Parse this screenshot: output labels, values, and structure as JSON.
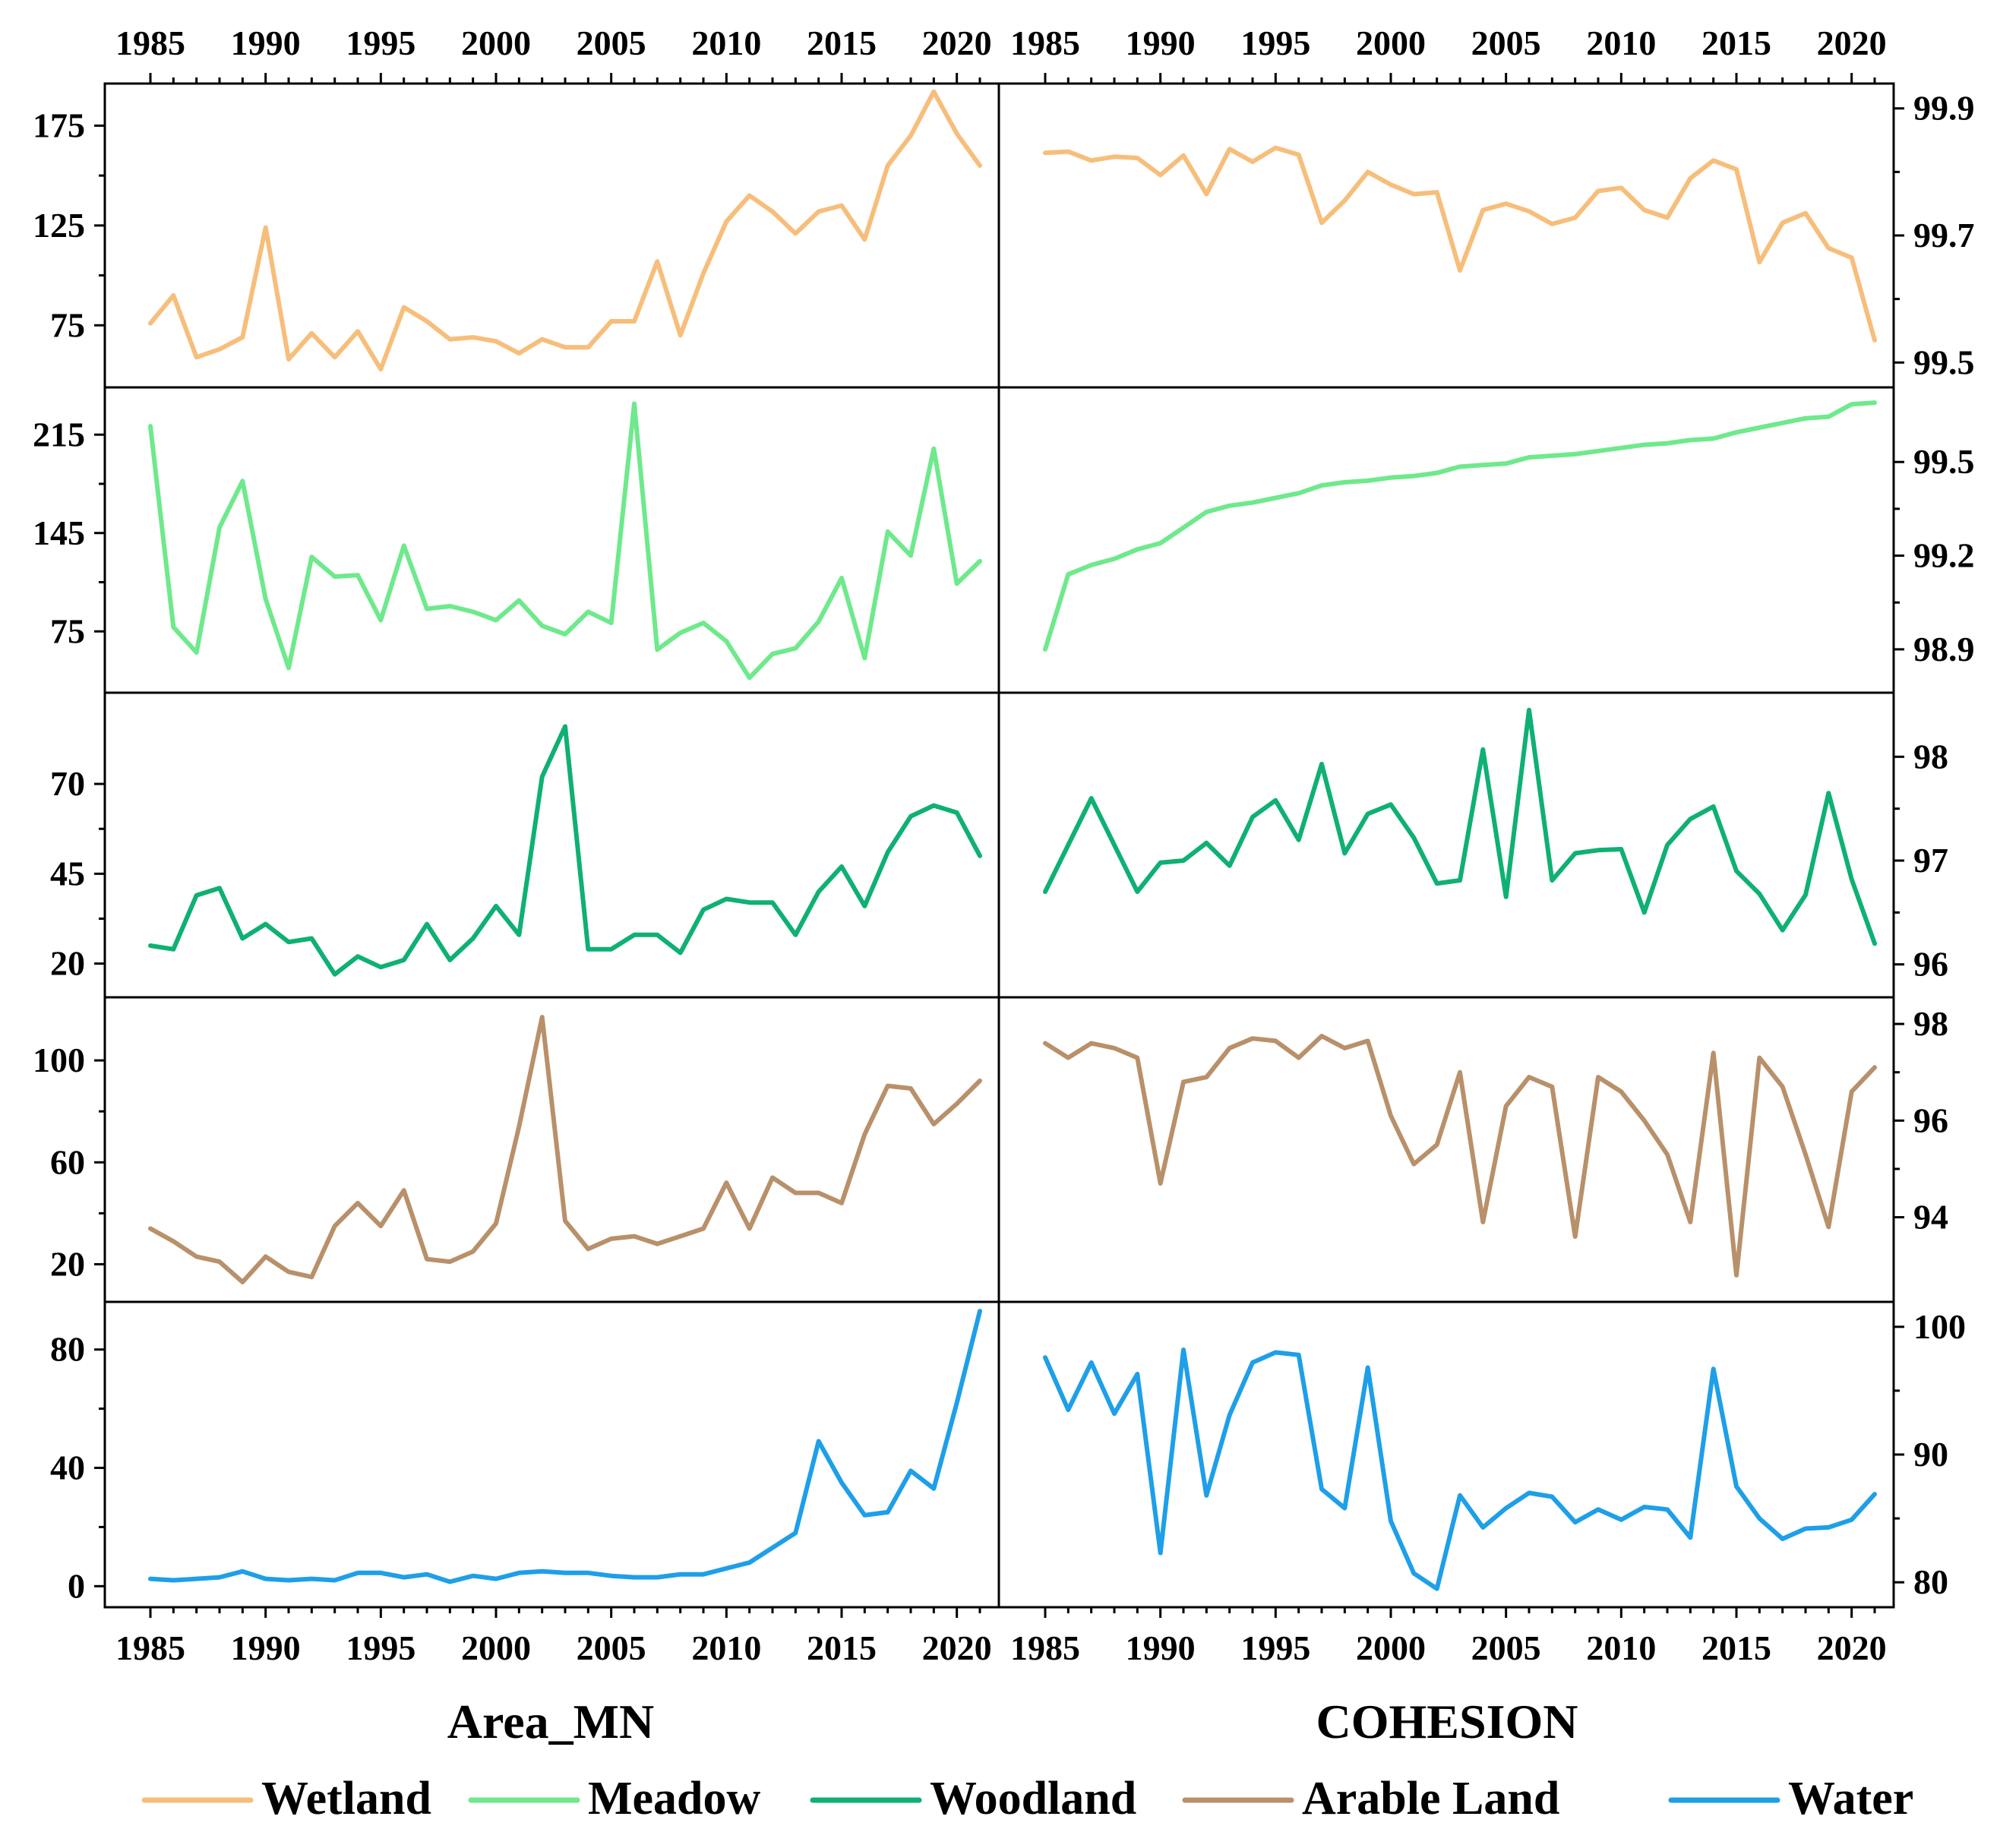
{
  "chart_data": {
    "type": "line",
    "years": [
      1985,
      1986,
      1987,
      1988,
      1989,
      1990,
      1991,
      1992,
      1993,
      1994,
      1995,
      1996,
      1997,
      1998,
      1999,
      2000,
      2001,
      2002,
      2003,
      2004,
      2005,
      2006,
      2007,
      2008,
      2009,
      2010,
      2011,
      2012,
      2013,
      2014,
      2015,
      2016,
      2017,
      2018,
      2019,
      2020,
      2021
    ],
    "x_ticks": [
      "1985",
      "1990",
      "1995",
      "2000",
      "2005",
      "2010",
      "2015",
      "2020"
    ],
    "columns": [
      {
        "title": "Area_MN",
        "metric": "Area_MN"
      },
      {
        "title": "COHESION",
        "metric": "COHESION"
      }
    ],
    "legend": [
      {
        "name": "Wetland",
        "color": "#F7BE7B"
      },
      {
        "name": "Meadow",
        "color": "#6EE98C"
      },
      {
        "name": "Woodland",
        "color": "#0FB074"
      },
      {
        "name": "Arable Land",
        "color": "#B8906A"
      },
      {
        "name": "Water",
        "color": "#1E9FE8"
      }
    ],
    "rows": [
      {
        "series": "Wetland",
        "color": "#F7BE7B",
        "area_mn": {
          "ylim": [
            50,
            190
          ],
          "ticks": [
            "75",
            "125",
            "175"
          ],
          "values": [
            76,
            90,
            59,
            63,
            69,
            124,
            58,
            71,
            59,
            72,
            53,
            84,
            77,
            68,
            69,
            67,
            61,
            68,
            64,
            64,
            77,
            77,
            107,
            70,
            101,
            127,
            140,
            132,
            121,
            132,
            135,
            118,
            155,
            170,
            192,
            171,
            155
          ]
        },
        "cohesion": {
          "ylim": [
            99.48,
            99.92
          ],
          "ticks": [
            "99.5",
            "99.7",
            "99.9"
          ],
          "values": [
            99.83,
            99.832,
            99.818,
            99.824,
            99.822,
            99.795,
            99.826,
            99.765,
            99.836,
            99.816,
            99.838,
            99.827,
            99.72,
            99.755,
            99.8,
            99.78,
            99.765,
            99.768,
            99.645,
            99.74,
            99.75,
            99.738,
            99.718,
            99.728,
            99.77,
            99.775,
            99.74,
            99.728,
            99.79,
            99.818,
            99.804,
            99.658,
            99.72,
            99.735,
            99.68,
            99.665,
            99.535
          ]
        }
      },
      {
        "series": "Meadow",
        "color": "#6EE98C",
        "area_mn": {
          "ylim": [
            40,
            240
          ],
          "ticks": [
            "75",
            "145",
            "215"
          ],
          "values": [
            221,
            78,
            60,
            149,
            182,
            98,
            49,
            128,
            114,
            115,
            83,
            136,
            91,
            93,
            89,
            83,
            97,
            79,
            73,
            89,
            81,
            237,
            62,
            74,
            81,
            68,
            42,
            59,
            63,
            82,
            113,
            56,
            146,
            129,
            205,
            109,
            125
          ]
        },
        "cohesion": {
          "ylim": [
            98.8,
            99.7
          ],
          "ticks": [
            "98.9",
            "99.2",
            "99.5"
          ],
          "values": [
            98.9,
            99.14,
            99.17,
            99.19,
            99.22,
            99.24,
            99.29,
            99.34,
            99.36,
            99.37,
            99.385,
            99.4,
            99.425,
            99.435,
            99.44,
            99.45,
            99.455,
            99.465,
            99.485,
            99.49,
            99.495,
            99.515,
            99.52,
            99.525,
            99.535,
            99.545,
            99.555,
            99.56,
            99.57,
            99.575,
            99.595,
            99.61,
            99.625,
            99.64,
            99.645,
            99.685,
            99.69
          ]
        }
      },
      {
        "series": "Woodland",
        "color": "#0FB074",
        "area_mn": {
          "ylim": [
            14,
            92
          ],
          "ticks": [
            "20",
            "45",
            "70"
          ],
          "values": [
            25,
            24,
            39,
            41,
            27,
            31,
            26,
            27,
            17,
            22,
            19,
            21,
            31,
            21,
            27,
            36,
            28,
            72,
            86,
            24,
            24,
            28,
            28,
            23,
            35,
            38,
            37,
            37,
            28,
            40,
            47,
            36,
            51,
            61,
            64,
            62,
            50
          ]
        },
        "cohesion": {
          "ylim": [
            95.8,
            98.5
          ],
          "ticks": [
            "96",
            "97",
            "98"
          ],
          "values": [
            96.7,
            97.15,
            97.6,
            97.15,
            96.7,
            96.98,
            97.0,
            97.17,
            96.95,
            97.42,
            97.58,
            97.2,
            97.93,
            97.07,
            97.45,
            97.54,
            97.22,
            96.78,
            96.81,
            98.07,
            96.65,
            98.45,
            96.81,
            97.07,
            97.1,
            97.11,
            96.5,
            97.15,
            97.4,
            97.52,
            96.9,
            96.68,
            96.33,
            96.67,
            97.65,
            96.82,
            96.2
          ]
        }
      },
      {
        "series": "Arable Land",
        "color": "#B8906A",
        "area_mn": {
          "ylim": [
            10,
            120
          ],
          "ticks": [
            "20",
            "60",
            "100"
          ],
          "values": [
            34,
            29,
            23,
            21,
            13,
            23,
            17,
            15,
            35,
            44,
            35,
            49,
            22,
            21,
            25,
            36,
            74,
            117,
            37,
            26,
            30,
            31,
            28,
            31,
            34,
            52,
            34,
            54,
            48,
            48,
            44,
            71,
            90,
            89,
            75,
            83,
            92
          ]
        },
        "cohesion": {
          "ylim": [
            92.5,
            98.3
          ],
          "ticks": [
            "94",
            "96",
            "98"
          ],
          "values": [
            97.6,
            97.3,
            97.6,
            97.5,
            97.3,
            94.7,
            96.8,
            96.9,
            97.5,
            97.7,
            97.65,
            97.3,
            97.75,
            97.5,
            97.65,
            96.1,
            95.1,
            95.5,
            97.0,
            93.9,
            96.3,
            96.9,
            96.7,
            93.6,
            96.9,
            96.6,
            96.0,
            95.3,
            93.9,
            97.4,
            92.8,
            97.3,
            96.7,
            95.3,
            93.8,
            96.6,
            97.1
          ]
        }
      },
      {
        "series": "Water",
        "color": "#1E9FE8",
        "area_mn": {
          "ylim": [
            -3,
            92
          ],
          "ticks": [
            "0",
            "40",
            "80"
          ],
          "values": [
            2.5,
            2,
            2.5,
            3,
            5,
            2.5,
            2,
            2.5,
            2,
            4.5,
            4.5,
            3,
            4,
            1.5,
            3.5,
            2.5,
            4.5,
            5,
            4.5,
            4.5,
            3.5,
            3,
            3,
            4,
            4,
            6,
            8,
            13,
            18,
            49,
            35,
            24,
            25,
            39,
            33,
            62,
            93
          ]
        },
        "cohesion": {
          "ylim": [
            79,
            101
          ],
          "ticks": [
            "80",
            "90",
            "100"
          ],
          "values": [
            97.6,
            93.5,
            97.2,
            93.2,
            96.3,
            82.3,
            98.2,
            86.8,
            93.1,
            97.2,
            98.0,
            97.8,
            87.3,
            85.8,
            96.8,
            84.8,
            80.7,
            79.5,
            86.8,
            84.3,
            85.8,
            87.0,
            86.7,
            84.7,
            85.7,
            84.9,
            85.9,
            85.7,
            83.5,
            96.7,
            87.5,
            85.0,
            83.4,
            84.2,
            84.3,
            84.9,
            86.9
          ]
        }
      }
    ]
  }
}
